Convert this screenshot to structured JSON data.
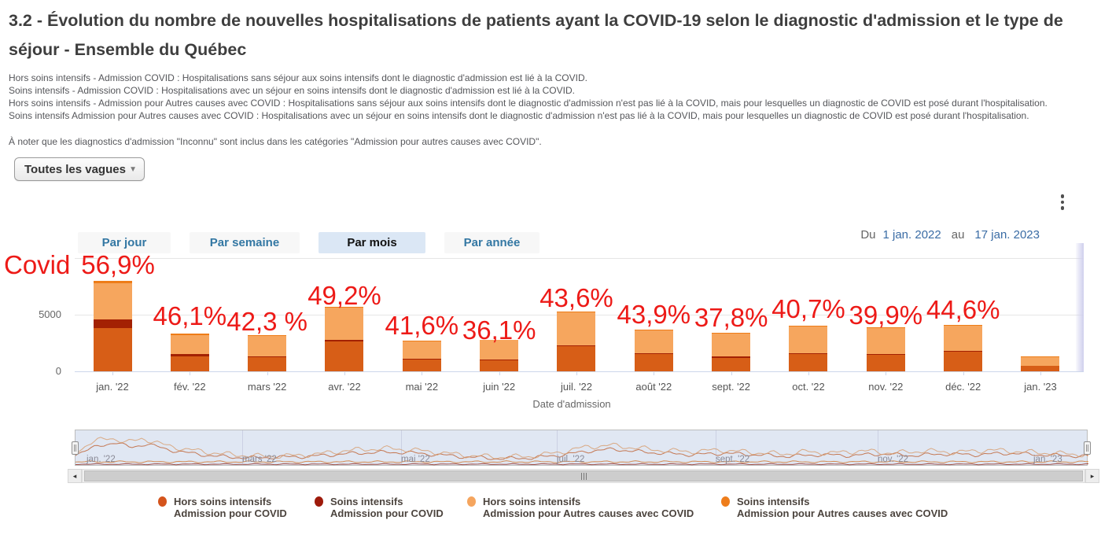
{
  "page": {
    "title": "3.2 - Évolution du nombre de nouvelles hospitalisations de patients ayant la COVID-19 selon le diagnostic d'admission et le type de séjour - Ensemble du Québec"
  },
  "descriptions": [
    "Hors soins intensifs - Admission COVID : Hospitalisations sans séjour aux soins intensifs dont le diagnostic d'admission est lié à la COVID.",
    "Soins intensifs - Admission COVID : Hospitalisations avec un séjour en soins intensifs dont le diagnostic d'admission est lié à la COVID.",
    "Hors soins intensifs - Admission pour Autres causes avec COVID : Hospitalisations sans séjour aux soins intensifs dont le diagnostic d'admission n'est pas lié à la COVID, mais pour lesquelles un diagnostic de COVID est posé durant l'hospitalisation.",
    "Soins intensifs Admission pour Autres causes avec COVID : Hospitalisations avec un séjour en soins intensifs dont le diagnostic d'admission n'est pas lié à la COVID, mais pour lesquelles un diagnostic de COVID est posé durant l'hospitalisation."
  ],
  "note": "À noter que les diagnostics d'admission \"Inconnu\" sont inclus dans les catégories \"Admission pour autres causes avec COVID\".",
  "wave_filter": {
    "value": "Toutes les vagues"
  },
  "tabs": [
    {
      "label": "Par jour",
      "active": false
    },
    {
      "label": "Par semaine",
      "active": false
    },
    {
      "label": "Par mois",
      "active": true
    },
    {
      "label": "Par année",
      "active": false
    }
  ],
  "date_range": {
    "prefix": "Du",
    "start": "1 jan. 2022",
    "conjunction": "au",
    "end": "17 jan. 2023"
  },
  "icons": {
    "dropdown_caret": "▼",
    "scroll_left": "◂",
    "scroll_right": "▸"
  },
  "chart_data": {
    "type": "bar",
    "stacked": true,
    "title": "",
    "xlabel": "Date d'admission",
    "ylabel": "",
    "categories": [
      "jan. '22",
      "fév. '22",
      "mars '22",
      "avr. '22",
      "mai '22",
      "juin '22",
      "juil. '22",
      "août '22",
      "sept. '22",
      "oct. '22",
      "nov. '22",
      "déc. '22",
      "jan. '23"
    ],
    "series": [
      {
        "name": "Hors soins intensifs Admission pour COVID",
        "color": "#d75e17",
        "values": [
          3850,
          1350,
          1230,
          2620,
          1030,
          940,
          2200,
          1540,
          1210,
          1540,
          1470,
          1700,
          460
        ]
      },
      {
        "name": "Soins intensifs Admission pour COVID",
        "color": "#a32103",
        "values": [
          700,
          170,
          120,
          180,
          90,
          70,
          110,
          85,
          75,
          90,
          85,
          130,
          40
        ]
      },
      {
        "name": "Hors soins intensifs Admission pour Autres causes avec COVID",
        "color": "#f6a65e",
        "values": [
          3250,
          1700,
          1780,
          2820,
          1530,
          1740,
          2930,
          2010,
          2060,
          2310,
          2290,
          2210,
          770
        ]
      },
      {
        "name": "Soins intensifs Admission pour Autres causes avec COVID",
        "color": "#ee7d18",
        "values": [
          200,
          80,
          70,
          80,
          50,
          50,
          60,
          65,
          55,
          60,
          55,
          60,
          30
        ]
      }
    ],
    "y_axis": {
      "tick_labels": [
        "0",
        "5000"
      ],
      "tick_values": [
        0,
        5000
      ],
      "ylim": [
        0,
        11500
      ],
      "grid": true
    },
    "legend_position": "bottom",
    "annotations": {
      "prefix": "Covid",
      "color": "#ed1a17",
      "items": [
        {
          "index": 0,
          "text": "56,9%"
        },
        {
          "index": 1,
          "text": "46,1%"
        },
        {
          "index": 2,
          "text": "42,3 %"
        },
        {
          "index": 3,
          "text": "49,2%"
        },
        {
          "index": 4,
          "text": "41,6%"
        },
        {
          "index": 5,
          "text": "36,1%"
        },
        {
          "index": 6,
          "text": "43,6%"
        },
        {
          "index": 7,
          "text": "43,9%"
        },
        {
          "index": 8,
          "text": "37,8%"
        },
        {
          "index": 9,
          "text": "40,7%"
        },
        {
          "index": 10,
          "text": "39,9%"
        },
        {
          "index": 11,
          "text": "44,6%"
        }
      ]
    }
  },
  "navigator": {
    "labels": [
      "jan. '22",
      "mars '22",
      "mai '22",
      "juil. '22",
      "sept. '22",
      "nov. '22",
      "jan. '23"
    ]
  },
  "legend": [
    {
      "line1": "Hors soins intensifs",
      "line2": "Admission pour COVID",
      "color": "#d4541c"
    },
    {
      "line1": "Soins intensifs",
      "line2": "Admission pour COVID",
      "color": "#9e1a0b"
    },
    {
      "line1": "Hors soins intensifs",
      "line2": "Admission pour Autres causes avec COVID",
      "color": "#f5a55e"
    },
    {
      "line1": "Soins intensifs",
      "line2": "Admission pour Autres causes avec COVID",
      "color": "#ee7d1b"
    }
  ]
}
